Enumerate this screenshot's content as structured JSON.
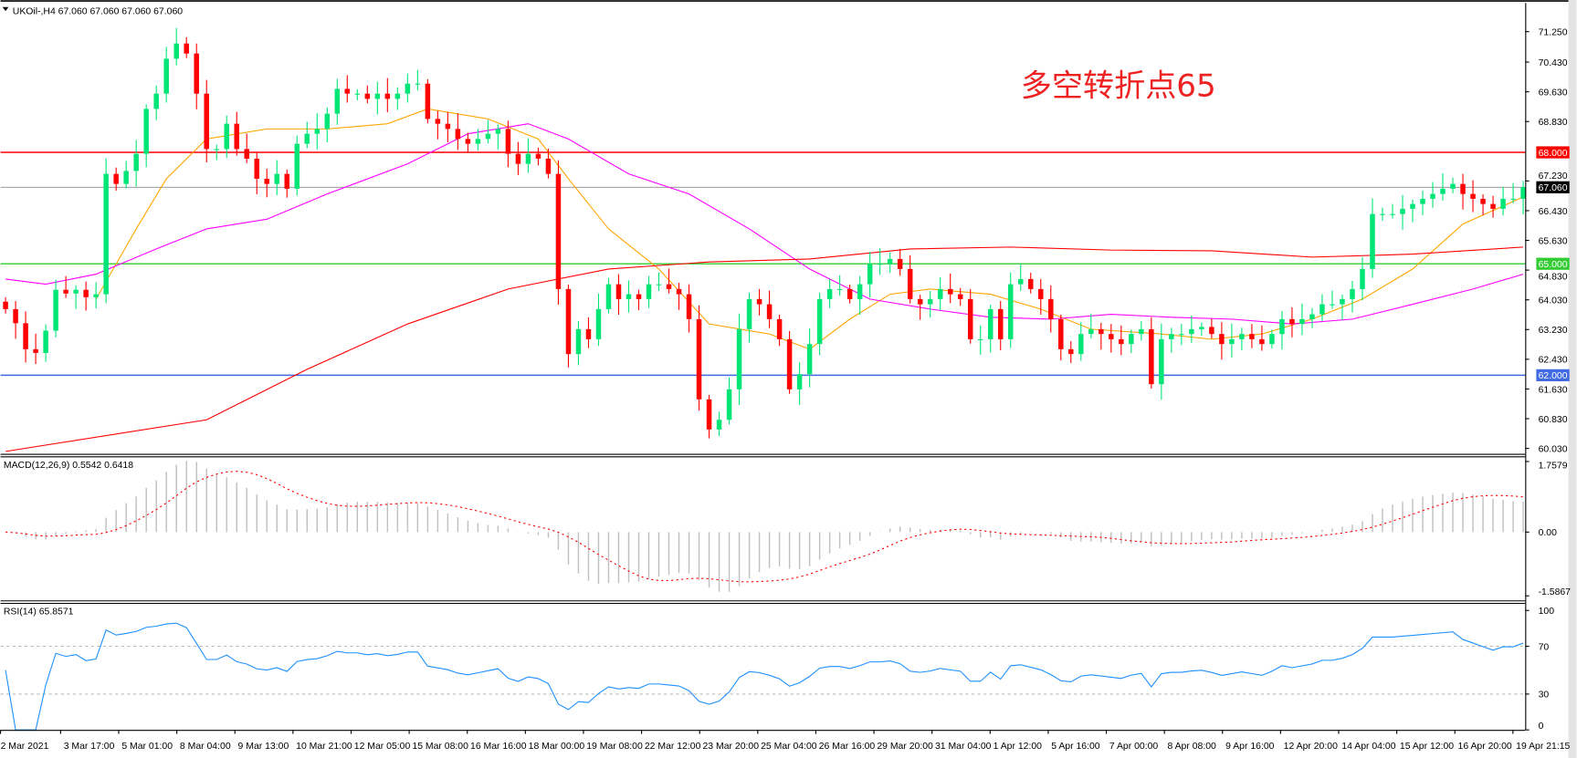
{
  "header": {
    "symbol_line": "UKOil-,H4  67.060 67.060 67.060 67.060"
  },
  "annotation": {
    "text": "多空转折点65",
    "color": "#ee2222"
  },
  "price_axis": {
    "ticks": [
      "71.250",
      "70.430",
      "69.630",
      "68.830",
      "67.230",
      "66.430",
      "65.630",
      "64.830",
      "64.030",
      "63.230",
      "62.430",
      "61.630",
      "60.830",
      "60.030"
    ]
  },
  "levels": [
    {
      "price": 68.0,
      "label": "68.000",
      "color": "#ff0000"
    },
    {
      "price": 65.0,
      "label": "65.000",
      "color": "#33cc33"
    },
    {
      "price": 62.0,
      "label": "62.000",
      "color": "#4169e1"
    }
  ],
  "current_price": {
    "price": 67.06,
    "label": "67.060",
    "color": "#000000",
    "line_color": "#8a8a8a"
  },
  "macd": {
    "title": "MACD(12,26,9) 0.5542 0.6418",
    "axis": [
      "1.7579",
      "0.00",
      "-1.5867"
    ],
    "hist_color": "#c0c0c0",
    "signal_color": "#ff0000"
  },
  "rsi": {
    "title": "RSI(14) 65.8571",
    "axis": [
      "100",
      "70",
      "30",
      "0"
    ],
    "levels": [
      70,
      30
    ],
    "color": "#1e90ff"
  },
  "time_axis": [
    "2 Mar 2021",
    "3 Mar 17:00",
    "5 Mar 01:00",
    "8 Mar 04:00",
    "9 Mar 13:00",
    "10 Mar 21:00",
    "12 Mar 05:00",
    "15 Mar 08:00",
    "16 Mar 16:00",
    "18 Mar 00:00",
    "19 Mar 08:00",
    "22 Mar 12:00",
    "23 Mar 20:00",
    "25 Mar 04:00",
    "26 Mar 16:00",
    "29 Mar 20:00",
    "31 Mar 04:00",
    "1 Apr 12:00",
    "5 Apr 16:00",
    "7 Apr 00:00",
    "8 Apr 08:00",
    "9 Apr 16:00",
    "12 Apr 20:00",
    "14 Apr 04:00",
    "15 Apr 12:00",
    "16 Apr 20:00",
    "19 Apr 21:15"
  ],
  "chart_data": {
    "type": "candlestick",
    "symbol": "UKOil-",
    "timeframe": "H4",
    "ylim": [
      60.03,
      71.25
    ],
    "bull_color": "#00e676",
    "bear_color": "#ff0000",
    "closes": [
      63.78,
      63.4,
      62.7,
      62.6,
      63.2,
      64.3,
      64.2,
      64.3,
      64.1,
      64.18,
      67.42,
      67.15,
      67.5,
      67.96,
      69.17,
      69.58,
      70.52,
      70.93,
      70.66,
      69.58,
      68.09,
      68.09,
      68.77,
      68.09,
      67.83,
      67.29,
      67.15,
      67.42,
      67.02,
      68.23,
      68.5,
      68.63,
      69.04,
      69.71,
      69.58,
      69.58,
      69.44,
      69.58,
      69.44,
      69.58,
      69.85,
      69.85,
      68.9,
      68.77,
      68.63,
      68.36,
      68.23,
      68.36,
      68.5,
      68.63,
      67.96,
      67.69,
      67.96,
      67.83,
      67.42,
      64.32,
      62.57,
      63.24,
      62.97,
      63.78,
      64.45,
      64.05,
      64.18,
      64.05,
      64.45,
      64.45,
      64.32,
      64.18,
      63.51,
      61.35,
      60.54,
      60.8,
      61.62,
      63.24,
      64.05,
      63.91,
      63.51,
      62.97,
      61.62,
      62.03,
      62.84,
      64.05,
      64.32,
      64.32,
      64.05,
      64.45,
      65.0,
      65.0,
      65.13,
      64.86,
      64.05,
      63.91,
      64.05,
      64.32,
      64.18,
      64.05,
      62.97,
      62.97,
      63.78,
      62.97,
      64.45,
      64.59,
      64.32,
      64.05,
      63.51,
      62.7,
      62.57,
      63.11,
      63.24,
      63.11,
      62.97,
      62.84,
      63.11,
      63.24,
      61.76,
      62.97,
      63.11,
      63.11,
      63.24,
      63.3,
      63.11,
      62.84,
      62.97,
      63.11,
      62.97,
      62.84,
      63.11,
      63.51,
      63.38,
      63.51,
      63.64,
      63.91,
      63.91,
      64.05,
      64.32,
      64.86,
      66.34,
      66.34,
      66.34,
      66.48,
      66.61,
      66.75,
      66.88,
      67.02,
      67.15,
      66.88,
      66.75,
      66.61,
      66.48,
      66.75,
      66.75,
      67.06
    ],
    "moving_averages": [
      {
        "color": "#ffa500",
        "points": [
          [
            9,
            64.05
          ],
          [
            13,
            65.94
          ],
          [
            16,
            67.29
          ],
          [
            20,
            68.36
          ],
          [
            26,
            68.63
          ],
          [
            32,
            68.63
          ],
          [
            38,
            68.77
          ],
          [
            42,
            69.17
          ],
          [
            48,
            68.9
          ],
          [
            53,
            68.36
          ],
          [
            56,
            67.29
          ],
          [
            60,
            65.94
          ],
          [
            65,
            64.86
          ],
          [
            70,
            63.38
          ],
          [
            76,
            63.11
          ],
          [
            80,
            62.7
          ],
          [
            84,
            63.51
          ],
          [
            88,
            64.18
          ],
          [
            92,
            64.32
          ],
          [
            98,
            64.18
          ],
          [
            103,
            63.78
          ],
          [
            108,
            63.24
          ],
          [
            115,
            63.11
          ],
          [
            120,
            62.97
          ],
          [
            125,
            63.11
          ],
          [
            130,
            63.51
          ],
          [
            135,
            64.05
          ],
          [
            140,
            64.86
          ],
          [
            145,
            66.07
          ],
          [
            151,
            66.8
          ]
        ]
      },
      {
        "color": "#ff00ff",
        "points": [
          [
            0,
            64.59
          ],
          [
            4,
            64.45
          ],
          [
            9,
            64.72
          ],
          [
            15,
            65.4
          ],
          [
            20,
            65.94
          ],
          [
            26,
            66.2
          ],
          [
            32,
            66.88
          ],
          [
            40,
            67.69
          ],
          [
            46,
            68.5
          ],
          [
            52,
            68.77
          ],
          [
            56,
            68.36
          ],
          [
            62,
            67.42
          ],
          [
            68,
            66.88
          ],
          [
            74,
            65.94
          ],
          [
            80,
            64.86
          ],
          [
            86,
            64.05
          ],
          [
            92,
            63.78
          ],
          [
            98,
            63.56
          ],
          [
            104,
            63.51
          ],
          [
            110,
            63.64
          ],
          [
            116,
            63.56
          ],
          [
            122,
            63.51
          ],
          [
            128,
            63.38
          ],
          [
            134,
            63.51
          ],
          [
            140,
            63.91
          ],
          [
            146,
            64.32
          ],
          [
            151,
            64.72
          ]
        ]
      },
      {
        "color": "#ff0000",
        "points": [
          [
            0,
            59.95
          ],
          [
            20,
            60.8
          ],
          [
            30,
            62.16
          ],
          [
            40,
            63.38
          ],
          [
            50,
            64.32
          ],
          [
            60,
            64.86
          ],
          [
            70,
            65.05
          ],
          [
            80,
            65.13
          ],
          [
            90,
            65.4
          ],
          [
            100,
            65.45
          ],
          [
            110,
            65.37
          ],
          [
            120,
            65.35
          ],
          [
            130,
            65.18
          ],
          [
            140,
            65.26
          ],
          [
            151,
            65.45
          ]
        ]
      }
    ]
  }
}
